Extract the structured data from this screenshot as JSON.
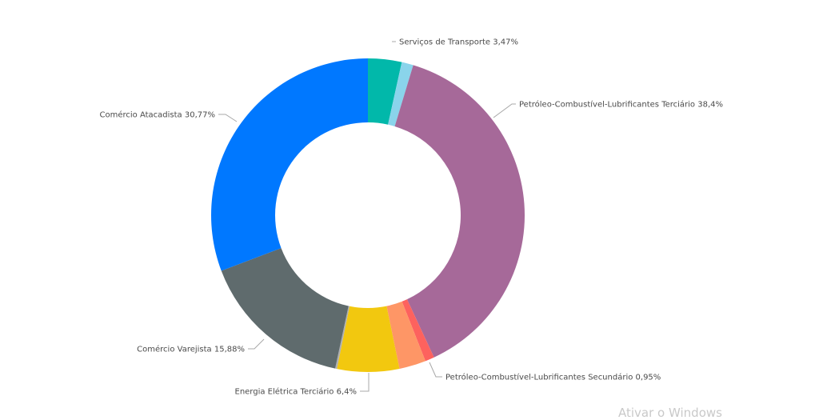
{
  "chart_data": {
    "type": "pie",
    "donut": true,
    "legend": "none",
    "slices": [
      {
        "label": "Serviços de Transporte",
        "value": 3.47,
        "color": "#01B8AA",
        "display": "Serviços de Transporte 3,47%"
      },
      {
        "label": "",
        "value": 1.2,
        "color": "#8AD4EB",
        "display": ""
      },
      {
        "label": "Petróleo-Combustível-Lubrificantes Terciário",
        "value": 38.4,
        "color": "#A66999",
        "display": "Petróleo-Combustível-Lubrificantes Terciário 38,4%"
      },
      {
        "label": "Petróleo-Combustível-Lubrificantes Secundário",
        "value": 0.95,
        "color": "#FD625E",
        "display": "Petróleo-Combustível-Lubrificantes Secundário 0,95%"
      },
      {
        "label": "",
        "value": 2.75,
        "color": "#FE9666",
        "display": ""
      },
      {
        "label": "Energia Elétrica Terciário",
        "value": 6.4,
        "color": "#F2C80F",
        "display": "Energia Elétrica Terciário 6,4%"
      },
      {
        "label": "",
        "value": 0.18,
        "color": "#B0B0B0",
        "display": ""
      },
      {
        "label": "Comércio Varejista",
        "value": 15.88,
        "color": "#5F6B6D",
        "display": "Comércio Varejista 15,88%"
      },
      {
        "label": "Comércio Atacadista",
        "value": 30.77,
        "color": "#0078FF",
        "display": "Comércio Atacadista 30,77%"
      }
    ]
  },
  "watermark": "Ativar o Windows"
}
